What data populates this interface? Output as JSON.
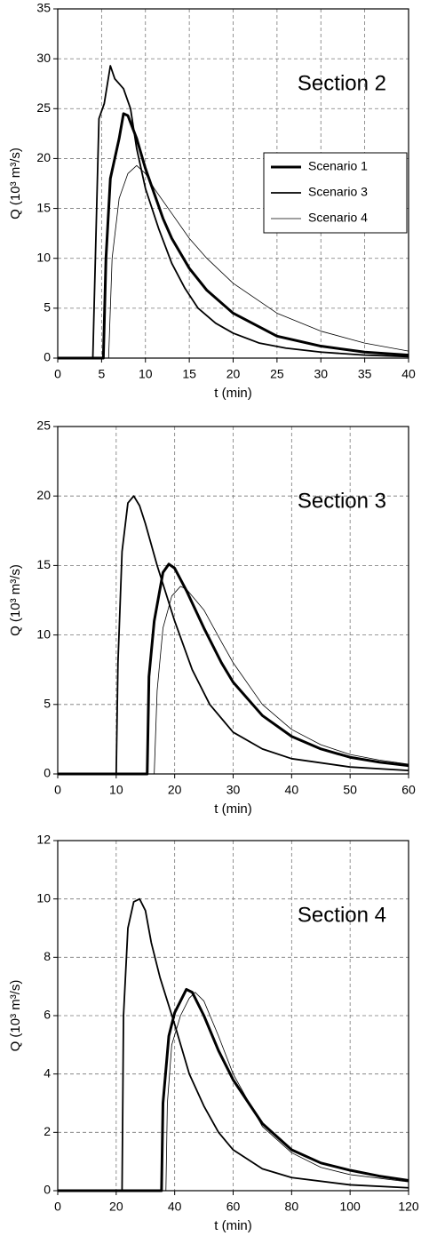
{
  "chart_data": [
    {
      "type": "line",
      "annotation": "Section 2",
      "xlabel": "t (min)",
      "ylabel": "Q (10³ m³/s)",
      "xlim": [
        0,
        40
      ],
      "xticks": [
        0,
        5,
        10,
        15,
        20,
        25,
        30,
        35,
        40
      ],
      "ylim": [
        0,
        35
      ],
      "yticks": [
        0,
        5,
        10,
        15,
        20,
        25,
        30,
        35
      ],
      "grid": true,
      "legend": "upper right",
      "series": [
        {
          "name": "Scenario 1",
          "color": "#000000",
          "width": 3,
          "x": [
            0,
            5.2,
            5.5,
            6,
            7,
            7.5,
            8,
            9,
            10,
            11,
            12,
            13,
            15,
            17,
            20,
            25,
            30,
            35,
            40
          ],
          "values": [
            0,
            0,
            10,
            18,
            22,
            24.5,
            24.3,
            22,
            19,
            16.5,
            14,
            12,
            9,
            6.8,
            4.5,
            2.2,
            1.2,
            0.6,
            0.3
          ]
        },
        {
          "name": "Scenario 3",
          "color": "#000000",
          "width": 1.8,
          "x": [
            0,
            4.0,
            4.7,
            5.3,
            6,
            6.5,
            7,
            7.5,
            8.3,
            9,
            10,
            11.5,
            13,
            14.5,
            16,
            18,
            20,
            23,
            26,
            30,
            35,
            40
          ],
          "values": [
            0,
            0,
            24,
            25.5,
            29.3,
            28,
            27.5,
            27,
            25,
            21,
            17,
            13,
            9.5,
            7,
            5,
            3.5,
            2.5,
            1.5,
            1,
            0.6,
            0.3,
            0.15
          ]
        },
        {
          "name": "Scenario 4",
          "color": "#000000",
          "width": 0.8,
          "x": [
            0,
            5.8,
            6.2,
            7,
            8,
            9,
            10,
            11,
            13,
            15,
            17,
            20,
            25,
            30,
            35,
            40
          ],
          "values": [
            0,
            0,
            10,
            16,
            18.5,
            19.3,
            18.5,
            17,
            14.5,
            12,
            10,
            7.5,
            4.5,
            2.7,
            1.5,
            0.7
          ]
        }
      ]
    },
    {
      "type": "line",
      "annotation": "Section 3",
      "xlabel": "t (min)",
      "ylabel": "Q (10³ m³/s)",
      "xlim": [
        0,
        60
      ],
      "xticks": [
        0,
        10,
        20,
        30,
        40,
        50,
        60
      ],
      "ylim": [
        0,
        25
      ],
      "yticks": [
        0,
        5,
        10,
        15,
        20,
        25
      ],
      "grid": true,
      "series": [
        {
          "color": "#000000",
          "width": 3,
          "x": [
            0,
            15.3,
            15.6,
            16.5,
            18,
            19,
            20,
            22,
            25,
            28,
            30,
            35,
            40,
            45,
            50,
            55,
            60
          ],
          "values": [
            0,
            0,
            7,
            11,
            14.5,
            15.1,
            14.8,
            13.2,
            10.5,
            8,
            6.6,
            4.2,
            2.7,
            1.8,
            1.2,
            0.85,
            0.6
          ]
        },
        {
          "color": "#000000",
          "width": 1.8,
          "x": [
            0,
            10,
            10.3,
            11,
            12,
            13,
            14,
            15,
            17,
            20,
            23,
            26,
            30,
            35,
            40,
            50,
            60
          ],
          "values": [
            0,
            0,
            8,
            16,
            19.5,
            20,
            19.3,
            18,
            15,
            11,
            7.5,
            5,
            3,
            1.8,
            1.1,
            0.5,
            0.25
          ]
        },
        {
          "color": "#000000",
          "width": 0.8,
          "x": [
            0,
            16.5,
            17,
            18,
            19.5,
            21,
            22,
            25,
            28,
            30,
            35,
            40,
            45,
            50,
            55,
            60
          ],
          "values": [
            0,
            0,
            6,
            10.5,
            12.8,
            13.5,
            13.3,
            11.8,
            9.5,
            8,
            5,
            3.2,
            2.1,
            1.4,
            1,
            0.7
          ]
        }
      ]
    },
    {
      "type": "line",
      "annotation": "Section 4",
      "xlabel": "t (min)",
      "ylabel": "Q (10³ m³/s)",
      "xlim": [
        0,
        120
      ],
      "xticks": [
        0,
        20,
        40,
        60,
        80,
        100,
        120
      ],
      "ylim": [
        0,
        12
      ],
      "yticks": [
        0,
        2,
        4,
        6,
        8,
        10,
        12
      ],
      "grid": true,
      "series": [
        {
          "color": "#000000",
          "width": 3,
          "x": [
            0,
            35.5,
            36,
            38,
            40,
            42,
            44,
            46,
            50,
            55,
            60,
            70,
            80,
            90,
            100,
            110,
            120
          ],
          "values": [
            0,
            0,
            3,
            5.3,
            6.1,
            6.5,
            6.9,
            6.8,
            6,
            4.8,
            3.8,
            2.3,
            1.4,
            0.95,
            0.7,
            0.5,
            0.35
          ]
        },
        {
          "color": "#000000",
          "width": 1.8,
          "x": [
            0,
            22,
            22.5,
            24,
            26,
            28,
            30,
            32,
            35,
            40,
            45,
            50,
            55,
            60,
            70,
            80,
            100,
            120
          ],
          "values": [
            0,
            0,
            6,
            9,
            9.9,
            10,
            9.6,
            8.5,
            7.3,
            5.7,
            4,
            2.9,
            2,
            1.4,
            0.75,
            0.45,
            0.2,
            0.1
          ]
        },
        {
          "color": "#000000",
          "width": 0.8,
          "x": [
            0,
            37,
            37.5,
            39,
            42,
            45,
            47,
            50,
            55,
            60,
            70,
            80,
            90,
            100,
            120
          ],
          "values": [
            0,
            0,
            3,
            5,
            6,
            6.6,
            6.8,
            6.5,
            5.3,
            4,
            2.2,
            1.3,
            0.8,
            0.55,
            0.3
          ]
        }
      ]
    }
  ]
}
